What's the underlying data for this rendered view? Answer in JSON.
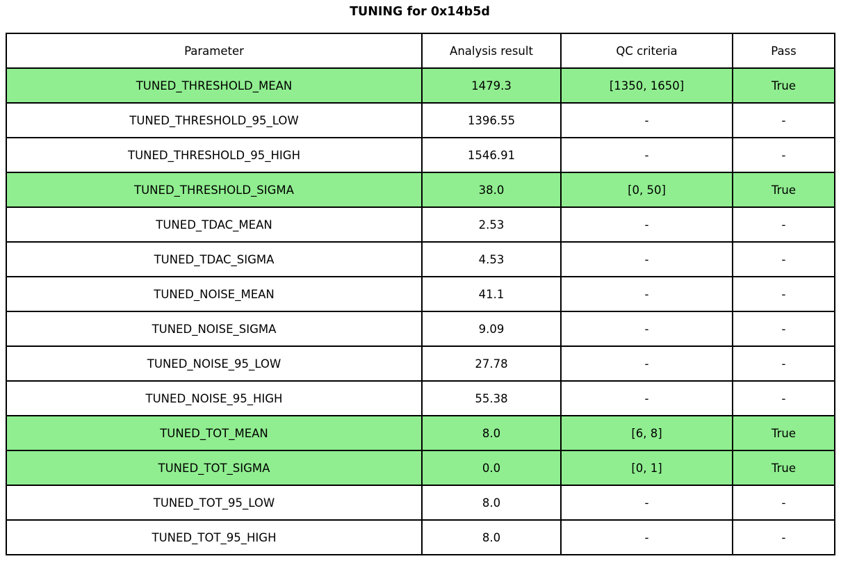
{
  "title": "TUNING for 0x14b5d",
  "colors": {
    "highlight_green": "#90EE90",
    "border": "#000000",
    "background": "#FFFFFF",
    "text": "#000000"
  },
  "table": {
    "headers": [
      "Parameter",
      "Analysis result",
      "QC criteria",
      "Pass"
    ],
    "rows": [
      {
        "parameter": "TUNED_THRESHOLD_MEAN",
        "result": "1479.3",
        "criteria": "[1350, 1650]",
        "pass": "True",
        "highlight": true
      },
      {
        "parameter": "TUNED_THRESHOLD_95_LOW",
        "result": "1396.55",
        "criteria": "-",
        "pass": "-",
        "highlight": false
      },
      {
        "parameter": "TUNED_THRESHOLD_95_HIGH",
        "result": "1546.91",
        "criteria": "-",
        "pass": "-",
        "highlight": false
      },
      {
        "parameter": "TUNED_THRESHOLD_SIGMA",
        "result": "38.0",
        "criteria": "[0, 50]",
        "pass": "True",
        "highlight": true
      },
      {
        "parameter": "TUNED_TDAC_MEAN",
        "result": "2.53",
        "criteria": "-",
        "pass": "-",
        "highlight": false
      },
      {
        "parameter": "TUNED_TDAC_SIGMA",
        "result": "4.53",
        "criteria": "-",
        "pass": "-",
        "highlight": false
      },
      {
        "parameter": "TUNED_NOISE_MEAN",
        "result": "41.1",
        "criteria": "-",
        "pass": "-",
        "highlight": false
      },
      {
        "parameter": "TUNED_NOISE_SIGMA",
        "result": "9.09",
        "criteria": "-",
        "pass": "-",
        "highlight": false
      },
      {
        "parameter": "TUNED_NOISE_95_LOW",
        "result": "27.78",
        "criteria": "-",
        "pass": "-",
        "highlight": false
      },
      {
        "parameter": "TUNED_NOISE_95_HIGH",
        "result": "55.38",
        "criteria": "-",
        "pass": "-",
        "highlight": false
      },
      {
        "parameter": "TUNED_TOT_MEAN",
        "result": "8.0",
        "criteria": "[6, 8]",
        "pass": "True",
        "highlight": true
      },
      {
        "parameter": "TUNED_TOT_SIGMA",
        "result": "0.0",
        "criteria": "[0, 1]",
        "pass": "True",
        "highlight": true
      },
      {
        "parameter": "TUNED_TOT_95_LOW",
        "result": "8.0",
        "criteria": "-",
        "pass": "-",
        "highlight": false
      },
      {
        "parameter": "TUNED_TOT_95_HIGH",
        "result": "8.0",
        "criteria": "-",
        "pass": "-",
        "highlight": false
      }
    ]
  },
  "chart_data": {
    "type": "table",
    "title": "TUNING for 0x14b5d",
    "columns": [
      "Parameter",
      "Analysis result",
      "QC criteria",
      "Pass"
    ],
    "rows": [
      [
        "TUNED_THRESHOLD_MEAN",
        "1479.3",
        "[1350, 1650]",
        "True"
      ],
      [
        "TUNED_THRESHOLD_95_LOW",
        "1396.55",
        "-",
        "-"
      ],
      [
        "TUNED_THRESHOLD_95_HIGH",
        "1546.91",
        "-",
        "-"
      ],
      [
        "TUNED_THRESHOLD_SIGMA",
        "38.0",
        "[0, 50]",
        "True"
      ],
      [
        "TUNED_TDAC_MEAN",
        "2.53",
        "-",
        "-"
      ],
      [
        "TUNED_TDAC_SIGMA",
        "4.53",
        "-",
        "-"
      ],
      [
        "TUNED_NOISE_MEAN",
        "41.1",
        "-",
        "-"
      ],
      [
        "TUNED_NOISE_SIGMA",
        "9.09",
        "-",
        "-"
      ],
      [
        "TUNED_NOISE_95_LOW",
        "27.78",
        "-",
        "-"
      ],
      [
        "TUNED_NOISE_95_HIGH",
        "55.38",
        "-",
        "-"
      ],
      [
        "TUNED_TOT_MEAN",
        "8.0",
        "[6, 8]",
        "True"
      ],
      [
        "TUNED_TOT_SIGMA",
        "0.0",
        "[0, 1]",
        "True"
      ],
      [
        "TUNED_TOT_95_LOW",
        "8.0",
        "-",
        "-"
      ],
      [
        "TUNED_TOT_95_HIGH",
        "8.0",
        "-",
        "-"
      ]
    ],
    "highlighted_row_indices": [
      0,
      3,
      10,
      11
    ],
    "layout": "highlighted rows indicate parameters with QC criteria that passed"
  }
}
